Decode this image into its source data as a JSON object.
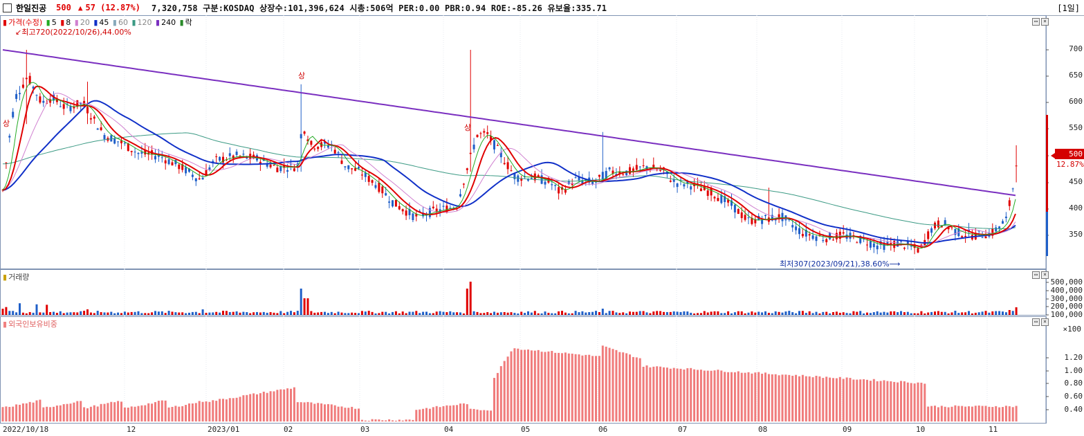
{
  "header": {
    "stock_name": "한일진공",
    "price": "500",
    "change_arrow": "▲",
    "change": "57 (12.87%)",
    "info": "7,320,758  구분:KOSDAQ 상장수:101,396,624 시총:506억 PER:0.00 PBR:0.94 ROE:-85.26 유보율:335.71",
    "period": "[1일]"
  },
  "price_pane": {
    "legend": {
      "price": "가격(수정)",
      "ma5": "5",
      "ma8": "8",
      "ma20": "20",
      "ma45": "45",
      "ma60": "60",
      "ma120": "120",
      "ma240": "240",
      "down": "락"
    },
    "high_annotation": "최고720(2022/10/26),44.00%",
    "low_annotation": "최저307(2023/09/21),38.60%",
    "current_price": "500",
    "current_pct": "12.87%",
    "yticks": [
      "700",
      "650",
      "600",
      "550",
      "500",
      "450",
      "400",
      "350"
    ],
    "sang_marks": [
      "상",
      "상",
      "상"
    ],
    "colors": {
      "up": "#e00000",
      "down": "#1f5fc8",
      "ma240": "#7a2fc0",
      "ma45": "#1030c8",
      "ma120": "#3b9a84",
      "ma20": "#d080d0",
      "ma5": "#22aa22"
    }
  },
  "volume_pane": {
    "legend": "거래량",
    "yticks": [
      "500,000",
      "400,000",
      "300,000",
      "200,000",
      "100,000",
      "×100"
    ]
  },
  "foreign_pane": {
    "legend": "외국인보유비중",
    "yticks": [
      "1.20",
      "1.00",
      "0.80",
      "0.60",
      "0.40"
    ]
  },
  "xaxis": {
    "labels": [
      "2022/10/18",
      "12",
      "2023/01",
      "02",
      "03",
      "04",
      "05",
      "06",
      "07",
      "08",
      "09",
      "10",
      "11"
    ]
  }
}
